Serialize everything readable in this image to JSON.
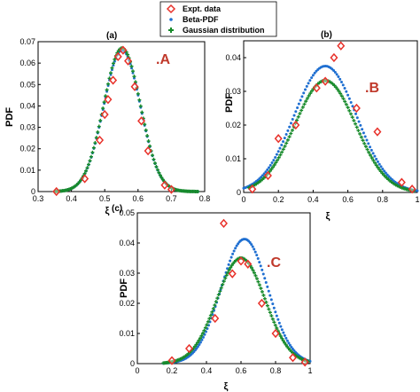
{
  "colors": {
    "expt": "#e8312a",
    "beta": "#1f6fd1",
    "gauss": "#178a2a",
    "letter": "#c0392b"
  },
  "legend": {
    "items": [
      "Expt. data",
      "Beta-PDF",
      "Gaussian distribution"
    ]
  },
  "chart_data": [
    {
      "type": "scatter",
      "id": "a",
      "tag": "(a)",
      "letter": ".A",
      "xlabel": "ξ",
      "ylabel": "PDF",
      "xlim": [
        0.3,
        0.8
      ],
      "ylim": [
        0,
        0.07
      ],
      "xticks": [
        0.3,
        0.4,
        0.5,
        0.6,
        0.7,
        0.8
      ],
      "xtick_labels": [
        "0.3",
        "0.4",
        "0.5",
        "0.6",
        "0.7",
        "0.8"
      ],
      "yticks": [
        0,
        0.01,
        0.02,
        0.03,
        0.04,
        0.05,
        0.06,
        0.07
      ],
      "ytick_labels": [
        "0",
        "0.01",
        "0.02",
        "0.03",
        "0.04",
        "0.05",
        "0.06",
        "0.07"
      ],
      "grid": false,
      "beta": {
        "mean": 0.552,
        "sd": 0.055,
        "peak": 0.066,
        "range": [
          0.35,
          0.78
        ]
      },
      "gauss": {
        "mean": 0.552,
        "sd": 0.055,
        "peak": 0.067,
        "range": [
          0.35,
          0.78
        ]
      },
      "expt": {
        "x": [
          0.355,
          0.44,
          0.485,
          0.5,
          0.51,
          0.525,
          0.54,
          0.555,
          0.57,
          0.59,
          0.61,
          0.63,
          0.68,
          0.7
        ],
        "y": [
          0.0,
          0.006,
          0.024,
          0.036,
          0.043,
          0.052,
          0.063,
          0.066,
          0.061,
          0.049,
          0.033,
          0.019,
          0.003,
          0.001
        ]
      }
    },
    {
      "type": "scatter",
      "id": "b",
      "tag": "(b)",
      "letter": ".B",
      "xlabel": "ξ",
      "ylabel": "PDF",
      "xlim": [
        0,
        1
      ],
      "ylim": [
        0,
        0.045
      ],
      "xticks": [
        0,
        0.2,
        0.4,
        0.6,
        0.8,
        1
      ],
      "xtick_labels": [
        "0",
        "0.2",
        "0.4",
        "0.6",
        "0.8",
        "1"
      ],
      "yticks": [
        0,
        0.01,
        0.02,
        0.03,
        0.04
      ],
      "ytick_labels": [
        "0",
        "0.01",
        "0.02",
        "0.03",
        "0.04"
      ],
      "grid": false,
      "beta": {
        "mean": 0.47,
        "sd": 0.18,
        "peak": 0.0375,
        "range": [
          0.0,
          1.0
        ]
      },
      "gauss": {
        "mean": 0.47,
        "sd": 0.175,
        "peak": 0.0332,
        "range": [
          0.03,
          0.98
        ]
      },
      "expt": {
        "x": [
          0.05,
          0.14,
          0.2,
          0.3,
          0.42,
          0.47,
          0.52,
          0.56,
          0.65,
          0.77,
          0.91,
          0.97
        ],
        "y": [
          0.001,
          0.005,
          0.016,
          0.02,
          0.031,
          0.033,
          0.04,
          0.0435,
          0.025,
          0.018,
          0.003,
          0.001
        ]
      }
    },
    {
      "type": "scatter",
      "id": "c",
      "tag": "(c)",
      "letter": ".C",
      "xlabel": "ξ",
      "ylabel": "PDF",
      "xlim": [
        0,
        1
      ],
      "ylim": [
        0,
        0.05
      ],
      "xticks": [
        0,
        0.2,
        0.4,
        0.6,
        0.8,
        1
      ],
      "xtick_labels": [
        "0",
        "0.2",
        "0.4",
        "0.6",
        "0.8",
        "1"
      ],
      "yticks": [
        0,
        0.01,
        0.02,
        0.03,
        0.04,
        0.05
      ],
      "ytick_labels": [
        "0",
        "0.01",
        "0.02",
        "0.03",
        "0.04",
        "0.05"
      ],
      "grid": false,
      "beta": {
        "mean": 0.62,
        "sd": 0.135,
        "peak": 0.0413,
        "range": [
          0.15,
          1.0
        ]
      },
      "gauss": {
        "mean": 0.6,
        "sd": 0.14,
        "peak": 0.035,
        "range": [
          0.15,
          0.99
        ]
      },
      "expt": {
        "x": [
          0.2,
          0.3,
          0.45,
          0.5,
          0.55,
          0.6,
          0.64,
          0.72,
          0.8,
          0.9,
          0.97
        ],
        "y": [
          0.001,
          0.005,
          0.015,
          0.0465,
          0.0298,
          0.034,
          0.033,
          0.02,
          0.01,
          0.002,
          0.0005
        ]
      }
    }
  ]
}
